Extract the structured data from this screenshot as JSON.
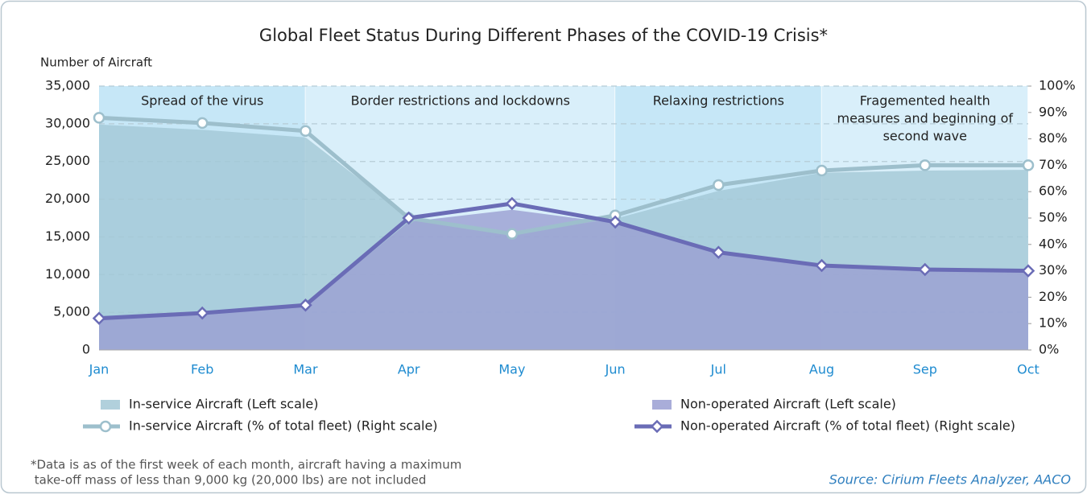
{
  "chart_data": {
    "type": "combo",
    "title": "Global Fleet Status During Different Phases of the COVID-19 Crisis*",
    "y_label": "Number of Aircraft",
    "categories": [
      "Jan",
      "Feb",
      "Mar",
      "Apr",
      "May",
      "Jun",
      "Jul",
      "Aug",
      "Sep",
      "Oct"
    ],
    "series": [
      {
        "name": "In-service Aircraft (Left scale)",
        "type": "area",
        "color": "#a3c8d6",
        "values": [
          29900,
          29200,
          28200,
          17600,
          15400,
          17400,
          21100,
          23500,
          23800,
          23900
        ]
      },
      {
        "name": "Non-operated Aircraft (Left scale)",
        "type": "area",
        "color": "#9a9fd2",
        "values": [
          4000,
          4700,
          5800,
          17000,
          18600,
          16800,
          13000,
          11200,
          10600,
          10400
        ]
      },
      {
        "name": "In-service Aircraft (% of total fleet) (Right scale)",
        "type": "line",
        "axis": "y2",
        "marker": "circle",
        "color": "#9dbfcc",
        "values": [
          88,
          86,
          83,
          50,
          44,
          51,
          62.5,
          68,
          70,
          70
        ]
      },
      {
        "name": "Non-operated Aircraft (% of total fleet) (Right scale)",
        "type": "line",
        "axis": "y2",
        "marker": "diamond",
        "color": "#6a6cb6",
        "values": [
          12,
          14,
          17,
          50,
          55.5,
          48.5,
          37,
          32,
          30.5,
          30
        ]
      }
    ],
    "phases": [
      {
        "label": [
          "Spread of the virus"
        ],
        "from": "Jan",
        "to": "Mar",
        "color": "#c6e7f7"
      },
      {
        "label": [
          "Border restrictions and lockdowns"
        ],
        "from": "Mar",
        "to": "Jun",
        "color": "#d9effa"
      },
      {
        "label": [
          "Relaxing restrictions"
        ],
        "from": "Jun",
        "to": "Aug",
        "color": "#c6e7f7"
      },
      {
        "label": [
          "Fragemented health",
          "measures and beginning of",
          "second wave"
        ],
        "from": "Aug",
        "to": "Oct",
        "color": "#d9effa"
      }
    ],
    "ylim": [
      0,
      35000
    ],
    "yticks": [
      0,
      {
        "value": 5000,
        "label": "5,000"
      },
      {
        "value": 10000,
        "label": "10,000"
      },
      {
        "value": 15000,
        "label": "15,000"
      },
      {
        "value": 20000,
        "label": "20,000"
      },
      {
        "value": 25000,
        "label": "25,000"
      },
      {
        "value": 30000,
        "label": "30,000"
      },
      {
        "value": 35000,
        "label": "35,000"
      }
    ],
    "y2lim": [
      0,
      100
    ],
    "y2ticks": [
      {
        "value": 0,
        "label": "0%"
      },
      {
        "value": 10,
        "label": "10%"
      },
      {
        "value": 20,
        "label": "20%"
      },
      {
        "value": 30,
        "label": "30%"
      },
      {
        "value": 40,
        "label": "40%"
      },
      {
        "value": 50,
        "label": "50%"
      },
      {
        "value": 60,
        "label": "60%"
      },
      {
        "value": 70,
        "label": "70%"
      },
      {
        "value": 80,
        "label": "80%"
      },
      {
        "value": 90,
        "label": "90%"
      },
      {
        "value": 100,
        "label": "100%"
      }
    ],
    "grid": true,
    "footnote": [
      "*Data is as of the first week of each month, aircraft having a maximum",
      " take-off mass of less than 9,000 kg (20,000 lbs) are not included"
    ],
    "source": "Source: Cirium Fleets Analyzer, AACO"
  }
}
